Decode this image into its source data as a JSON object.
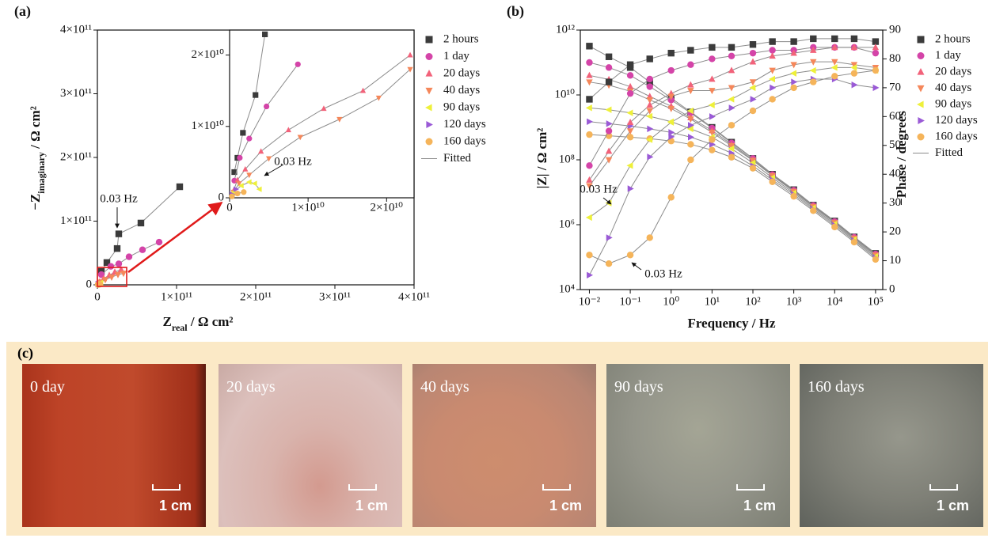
{
  "chart_data": [
    {
      "type": "scatter",
      "label": "(a)",
      "xlabel": [
        "Z",
        "real",
        " / Ω cm²"
      ],
      "ylabel": [
        "−Z",
        "imaginary",
        " / Ω cm²"
      ],
      "xlim": [
        0,
        400000000000.0
      ],
      "ylim": [
        0,
        400000000000.0
      ],
      "xticks": [
        0,
        {
          "value": 100000000000.0,
          "label": "1×10¹¹"
        },
        {
          "value": 200000000000.0,
          "label": "2×10¹¹"
        },
        {
          "value": 300000000000.0,
          "label": "3×10¹¹"
        },
        {
          "value": 400000000000.0,
          "label": "4×10¹¹"
        }
      ],
      "yticks": [
        0,
        {
          "value": 100000000000.0,
          "label": "1×10¹¹"
        },
        {
          "value": 200000000000.0,
          "label": "2×10¹¹"
        },
        {
          "value": 300000000000.0,
          "label": "3×10¹¹"
        },
        {
          "value": 400000000000.0,
          "label": "4×10¹¹"
        }
      ],
      "fit_name": "Fitted",
      "fit_color": "#8c8c8c",
      "annotations": [
        "0.03 Hz"
      ],
      "series": [
        {
          "name": "2 hours",
          "color": "#3b3b3b",
          "marker": "square",
          "x": [
            5000000000.0,
            12000000000.0,
            25000000000.0,
            27000000000.0,
            55000000000.0,
            104000000000.0
          ],
          "values": [
            21000000000.0,
            35000000000.0,
            57000000000.0,
            80000000000.0,
            97000000000.0,
            154000000000.0
          ]
        },
        {
          "name": "1 day",
          "color": "#d444a8",
          "marker": "circle",
          "x": [
            5000000000.0,
            17000000000.0,
            27000000000.0,
            40000000000.0,
            57000000000.0,
            78000000000.0
          ],
          "values": [
            16000000000.0,
            29000000000.0,
            33000000000.0,
            44000000000.0,
            55000000000.0,
            67000000000.0
          ]
        },
        {
          "name": "20 days",
          "color": "#f2627a",
          "marker": "tri-up",
          "x": [
            3000000000.0,
            8000000000.0,
            15000000000.0,
            22000000000.0,
            30000000000.0
          ],
          "values": [
            5000000000.0,
            10000000000.0,
            15000000000.0,
            20000000000.0,
            24000000000.0
          ]
        },
        {
          "name": "40 days",
          "color": "#f5875a",
          "marker": "tri-down",
          "x": [
            4000000000.0,
            10000000000.0,
            18000000000.0,
            26000000000.0,
            33000000000.0
          ],
          "values": [
            4000000000.0,
            8000000000.0,
            12000000000.0,
            16000000000.0,
            18000000000.0
          ]
        },
        {
          "name": "90 days",
          "color": "#eef03a",
          "marker": "tri-left",
          "x": [
            2000000000.0,
            4000000000.0
          ],
          "values": [
            2000000000.0,
            2500000000.0
          ]
        },
        {
          "name": "120 days",
          "color": "#9a5ad6",
          "marker": "tri-right",
          "x": [
            1000000000.0,
            2000000000.0
          ],
          "values": [
            1000000000.0,
            1500000000.0
          ]
        },
        {
          "name": "160 days",
          "color": "#f5b45a",
          "marker": "circle",
          "x": [
            1000000000.0,
            3000000000.0
          ],
          "values": [
            500000000.0,
            1000000000.0
          ]
        }
      ]
    },
    {
      "type": "scatter",
      "xlim": [
        0,
        23500000000.0
      ],
      "ylim": [
        0,
        23500000000.0
      ],
      "xticks": [
        0,
        {
          "value": 10000000000.0,
          "label": "1×10¹⁰"
        },
        {
          "value": 20000000000.0,
          "label": "2×10¹⁰"
        }
      ],
      "yticks": [
        0,
        {
          "value": 10000000000.0,
          "label": "1×10¹⁰"
        },
        {
          "value": 20000000000.0,
          "label": "2×10¹⁰"
        }
      ],
      "fit_color": "#8c8c8c",
      "annotations": [
        "0.03 Hz"
      ],
      "series": [
        {
          "color": "#3b3b3b",
          "marker": "square",
          "x": [
            600000000.0,
            1000000000.0,
            1700000000.0,
            3300000000.0,
            4500000000.0
          ],
          "values": [
            3600000000.0,
            5600000000.0,
            9100000000.0,
            14400000000.0,
            22900000000.0
          ]
        },
        {
          "color": "#d444a8",
          "marker": "circle",
          "x": [
            600000000.0,
            1300000000.0,
            2500000000.0,
            4700000000.0,
            8700000000.0
          ],
          "values": [
            2400000000.0,
            5600000000.0,
            8300000000.0,
            12800000000.0,
            18700000000.0
          ]
        },
        {
          "color": "#f2627a",
          "marker": "tri-up",
          "x": [
            500000000.0,
            1000000000.0,
            2000000000.0,
            4000000000.0,
            7500000000.0,
            12000000000.0,
            17000000000.0,
            23000000000.0
          ],
          "values": [
            1000000000.0,
            2500000000.0,
            4000000000.0,
            6500000000.0,
            9500000000.0,
            12500000000.0,
            15000000000.0,
            20000000000.0
          ]
        },
        {
          "color": "#f5875a",
          "marker": "tri-down",
          "x": [
            500000000.0,
            1200000000.0,
            2500000000.0,
            5000000000.0,
            9000000000.0,
            14000000000.0,
            19000000000.0,
            23000000000.0
          ],
          "values": [
            800000000.0,
            2000000000.0,
            3200000000.0,
            5500000000.0,
            8500000000.0,
            11000000000.0,
            14000000000.0,
            18000000000.0
          ]
        },
        {
          "color": "#eef03a",
          "marker": "tri-left",
          "x": [
            500000000.0,
            1500000000.0,
            2500000000.0,
            3200000000.0,
            3800000000.0
          ],
          "values": [
            800000000.0,
            1700000000.0,
            2200000000.0,
            2000000000.0,
            1200000000.0
          ]
        },
        {
          "color": "#9a5ad6",
          "marker": "tri-right",
          "x": [
            300000000.0,
            800000000.0
          ],
          "values": [
            500000000.0,
            1200000000.0
          ]
        },
        {
          "color": "#f5b45a",
          "marker": "circle",
          "x": [
            300000000.0,
            1000000000.0,
            1800000000.0
          ],
          "values": [
            200000000.0,
            600000000.0,
            800000000.0
          ]
        }
      ]
    },
    {
      "type": "scatter",
      "label": "(b)",
      "xscale": "log",
      "yscale": "log",
      "xlabel": "Frequency / Hz",
      "ylabel": "|Z| / Ω cm²",
      "y2label": "−Phase / degrees",
      "xlim": [
        0.006,
        150000.0
      ],
      "ylim": [
        10000.0,
        1000000000000.0
      ],
      "y2lim": [
        0,
        90
      ],
      "xticks": [
        {
          "value": 0.01,
          "label": "10⁻²"
        },
        {
          "value": 0.1,
          "label": "10⁻¹"
        },
        {
          "value": 1,
          "label": "10⁰"
        },
        {
          "value": 10,
          "label": "10¹"
        },
        {
          "value": 100,
          "label": "10²"
        },
        {
          "value": 1000,
          "label": "10³"
        },
        {
          "value": 10000,
          "label": "10⁴"
        },
        {
          "value": 100000,
          "label": "10⁵"
        }
      ],
      "yticks": [
        {
          "value": 10000.0,
          "label": "10⁴"
        },
        {
          "value": 1000000.0,
          "label": "10⁶"
        },
        {
          "value": 100000000.0,
          "label": "10⁸"
        },
        {
          "value": 10000000000.0,
          "label": "10¹⁰"
        },
        {
          "value": 1000000000000.0,
          "label": "10¹²"
        }
      ],
      "y2ticks": [
        0,
        10,
        20,
        30,
        40,
        50,
        60,
        70,
        80,
        90
      ],
      "fit_name": "Fitted",
      "fit_color": "#8c8c8c",
      "annotations": [
        "0.03 Hz",
        "0.03 Hz"
      ],
      "x": [
        0.01,
        0.03,
        0.1,
        0.3,
        1,
        3,
        10,
        30,
        100,
        300,
        1000,
        3000,
        10000,
        30000,
        100000
      ],
      "series": [
        {
          "name": "2 hours",
          "color": "#3b3b3b",
          "marker": "square",
          "values": [
            320000000000.0,
            150000000000.0,
            70000000000.0,
            25000000000.0,
            8000000000.0,
            3000000000.0,
            1000000000.0,
            350000000.0,
            110000000.0,
            36000000.0,
            12000000.0,
            4000000.0,
            1300000.0,
            420000.0,
            130000.0
          ]
        },
        {
          "name": "1 day",
          "color": "#d444a8",
          "marker": "circle",
          "values": [
            100000000000.0,
            70000000000.0,
            40000000000.0,
            18000000000.0,
            7000000000.0,
            2800000000.0,
            950000000.0,
            330000000.0,
            110000000.0,
            35000000.0,
            11500000.0,
            3900000.0,
            1250000.0,
            410000.0,
            125000.0
          ]
        },
        {
          "name": "20 days",
          "color": "#f2627a",
          "marker": "tri-up",
          "values": [
            40000000000.0,
            30000000000.0,
            18000000000.0,
            9000000000.0,
            4500000000.0,
            2000000000.0,
            800000000.0,
            300000000.0,
            100000000.0,
            34000000.0,
            11000000.0,
            3800000.0,
            1200000.0,
            400000.0,
            120000.0
          ]
        },
        {
          "name": "40 days",
          "color": "#f5875a",
          "marker": "tri-down",
          "values": [
            25000000000.0,
            20000000000.0,
            13000000000.0,
            7000000000.0,
            3800000000.0,
            1800000000.0,
            700000000.0,
            270000000.0,
            95000000.0,
            32000000.0,
            10500000.0,
            3600000.0,
            1150000.0,
            380000.0,
            115000.0
          ]
        },
        {
          "name": "90 days",
          "color": "#eef03a",
          "marker": "tri-left",
          "values": [
            4000000000.0,
            3500000000.0,
            2800000000.0,
            2200000000.0,
            1500000000.0,
            900000000.0,
            500000000.0,
            220000000.0,
            80000000.0,
            28000000.0,
            9500000.0,
            3300000.0,
            1050000.0,
            350000.0,
            105000.0
          ]
        },
        {
          "name": "120 days",
          "color": "#9a5ad6",
          "marker": "tri-right",
          "values": [
            1500000000.0,
            1300000000.0,
            1100000000.0,
            900000000.0,
            700000000.0,
            500000000.0,
            300000000.0,
            160000000.0,
            65000000.0,
            24000000.0,
            8500000.0,
            3000000.0,
            950000.0,
            320000.0,
            95000.0
          ]
        },
        {
          "name": "160 days",
          "color": "#f5b45a",
          "marker": "circle",
          "values": [
            600000000.0,
            550000000.0,
            500000000.0,
            450000000.0,
            380000000.0,
            300000000.0,
            200000000.0,
            120000000.0,
            55000000.0,
            21000000.0,
            7500000.0,
            2700000.0,
            850000.0,
            290000.0,
            85000.0
          ]
        }
      ],
      "phase_series": [
        {
          "axis": "y2",
          "color": "#3b3b3b",
          "marker": "square",
          "values": [
            66,
            72,
            78,
            80,
            82,
            83,
            84,
            84,
            85,
            86,
            86,
            87,
            87,
            87,
            86
          ]
        },
        {
          "axis": "y2",
          "color": "#d444a8",
          "marker": "circle",
          "values": [
            43,
            55,
            68,
            73,
            76,
            78,
            80,
            81,
            82,
            83,
            83,
            84,
            84,
            84,
            82
          ]
        },
        {
          "axis": "y2",
          "color": "#f2627a",
          "marker": "tri-up",
          "values": [
            38,
            48,
            58,
            64,
            68,
            71,
            73,
            76,
            79,
            81,
            82,
            83,
            84,
            84,
            84
          ]
        },
        {
          "axis": "y2",
          "color": "#f5875a",
          "marker": "tri-down",
          "values": [
            36,
            45,
            55,
            62,
            67,
            69,
            69,
            70,
            72,
            76,
            78,
            79,
            79,
            78,
            77
          ]
        },
        {
          "axis": "y2",
          "color": "#eef03a",
          "marker": "tri-left",
          "values": [
            25,
            30,
            43,
            52,
            58,
            62,
            64,
            66,
            70,
            73,
            75,
            76,
            77,
            77,
            76
          ]
        },
        {
          "axis": "y2",
          "color": "#9a5ad6",
          "marker": "tri-right",
          "values": [
            5,
            18,
            35,
            46,
            53,
            57,
            60,
            63,
            66,
            70,
            72,
            73,
            73,
            71,
            70
          ]
        },
        {
          "axis": "y2",
          "color": "#f5b45a",
          "marker": "circle",
          "values": [
            12,
            9,
            12,
            18,
            32,
            45,
            52,
            57,
            62,
            66,
            70,
            72,
            74,
            75,
            76
          ]
        }
      ]
    }
  ],
  "photos": {
    "label": "(c)",
    "items": [
      {
        "label": "0 day",
        "scale": "1 cm"
      },
      {
        "label": "20 days",
        "scale": "1 cm"
      },
      {
        "label": "40 days",
        "scale": "1 cm"
      },
      {
        "label": "90 days",
        "scale": "1 cm"
      },
      {
        "label": "160 days",
        "scale": "1 cm"
      }
    ]
  }
}
